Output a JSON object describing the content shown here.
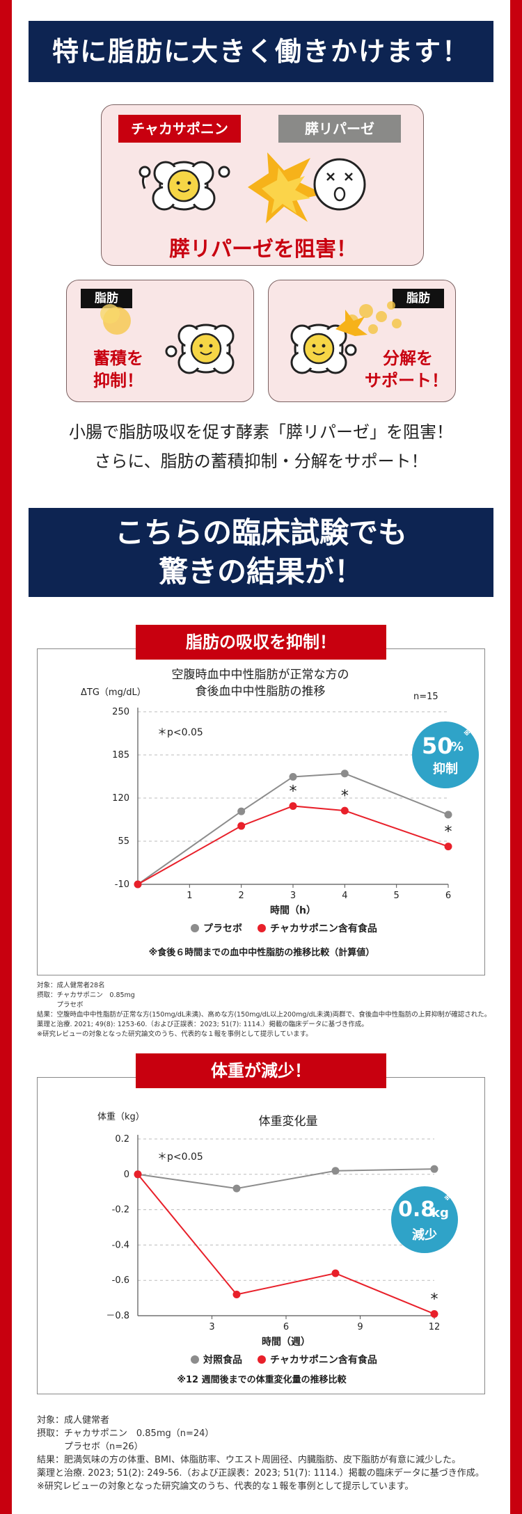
{
  "colors": {
    "red": "#c8000f",
    "navy": "#0d2452",
    "placebo": "#8c8c8c",
    "product": "#e8202a",
    "badge": "#2fa3c8"
  },
  "section1": {
    "title": "特に脂肪に大きく働きかけます！",
    "tag_saponin": "チャカサポニン",
    "tag_lipase": "膵リパーゼ",
    "block_text": "膵リパーゼを阻害！",
    "fat_tag_left": "脂肪",
    "fat_text_left": [
      "蓄積を",
      "抑制！"
    ],
    "fat_tag_right": "脂肪",
    "fat_text_right": [
      "分解を",
      "サポート！"
    ],
    "desc": [
      "小腸で脂肪吸収を促す酵素「膵リパーゼ」を阻害！",
      "さらに、脂肪の蓄積抑制・分解をサポート！"
    ]
  },
  "section2": {
    "title": [
      "こちらの臨床試験でも",
      "驚きの結果が！"
    ]
  },
  "chart1_header": {
    "tag": "脂肪の吸収を抑制！",
    "ylabel": "ΔTG（mg/dL）",
    "badge_main": "50",
    "badge_unit": "%",
    "badge_mark": "※",
    "badge_sub": "抑制",
    "footnote": "※食後６時間までの血中中性脂肪の推移比較（計算値）",
    "notes": "対象：成人健常者28名\n摂取：チャカサポニン　0.85mg\n　　　プラセボ\n結果：空腹時血中中性脂肪が正常な方(150mg/dL未満)、高めな方(150mg/dL以上200mg/dL未満)両群で、食後血中中性脂肪の上昇抑制が確認された。\n薬理と治療. 2021; 49(8): 1253-60.（および正誤表：2023; 51(7): 1114.）掲載の臨床データに基づき作成。\n※研究レビューの対象となった研究論文のうち、代表的な１報を事例として提示しています。"
  },
  "chart2_header": {
    "tag": "体重が減少！",
    "ylabel": "体重（kg）",
    "badge_main": "0.8",
    "badge_unit": "kg",
    "badge_mark": "※",
    "badge_sub": "減少",
    "footnote": "※12 週間後までの体重変化量の推移比較",
    "notes": "対象：成人健常者\n摂取：チャカサポニン　0.85mg（n=24）\n　　　プラセボ（n=26）\n結果：肥満気味の方の体重、BMI、体脂肪率、ウエスト周囲径、内臓脂肪、皮下脂肪が有意に減少した。\n薬理と治療. 2023; 51(2): 249-56.（および正誤表：2023; 51(7): 1114.）掲載の臨床データに基づき作成。\n※研究レビューの対象となった研究論文のうち、代表的な１報を事例として提示しています。"
  },
  "chart_data": [
    {
      "type": "line",
      "title": "空腹時血中中性脂肪が正常な方の\n食後血中中性脂肪の推移",
      "n_label": "n=15",
      "sig_label": "＊p<0.05",
      "xlabel": "時間（h）",
      "ylabel": "ΔTG（mg/dL）",
      "x": [
        0,
        2,
        3,
        4,
        6
      ],
      "xticks": [
        1,
        2,
        3,
        4,
        5,
        6
      ],
      "yticks": [
        -10,
        55,
        120,
        185,
        250
      ],
      "ytick_labels": [
        "-10",
        "55",
        "120",
        "185",
        "250"
      ],
      "ylim": [
        -10,
        250
      ],
      "xlim": [
        0,
        6
      ],
      "series": [
        {
          "name": "プラセボ",
          "values": [
            -10,
            100,
            152,
            157,
            95
          ],
          "color": "#8c8c8c"
        },
        {
          "name": "チャカサポニン含有食品",
          "values": [
            -10,
            78,
            108,
            101,
            47
          ],
          "color": "#e8202a",
          "significant": [
            false,
            false,
            true,
            true,
            true
          ]
        }
      ],
      "grid": "dashed",
      "legend": "bottom"
    },
    {
      "type": "line",
      "title": "体重変化量",
      "sig_label": "＊p<0.05",
      "xlabel": "時間（週）",
      "ylabel": "体重（kg）",
      "x": [
        0,
        4,
        8,
        12
      ],
      "xticks": [
        3,
        6,
        9,
        12
      ],
      "yticks": [
        -0.8,
        -0.6,
        -0.4,
        -0.2,
        0,
        0.2
      ],
      "ytick_labels": [
        "－0.8",
        "-0.6",
        "-0.4",
        "-0.2",
        "0",
        "0.2"
      ],
      "ylim": [
        -0.8,
        0.2
      ],
      "xlim": [
        0,
        12
      ],
      "series": [
        {
          "name": "対照食品",
          "values": [
            0,
            -0.08,
            0.02,
            0.03
          ],
          "color": "#8c8c8c"
        },
        {
          "name": "チャカサポニン含有食品",
          "values": [
            0,
            -0.68,
            -0.56,
            -0.79
          ],
          "color": "#e8202a",
          "significant": [
            false,
            false,
            false,
            true
          ]
        }
      ],
      "grid": "dashed",
      "legend": "bottom"
    }
  ]
}
